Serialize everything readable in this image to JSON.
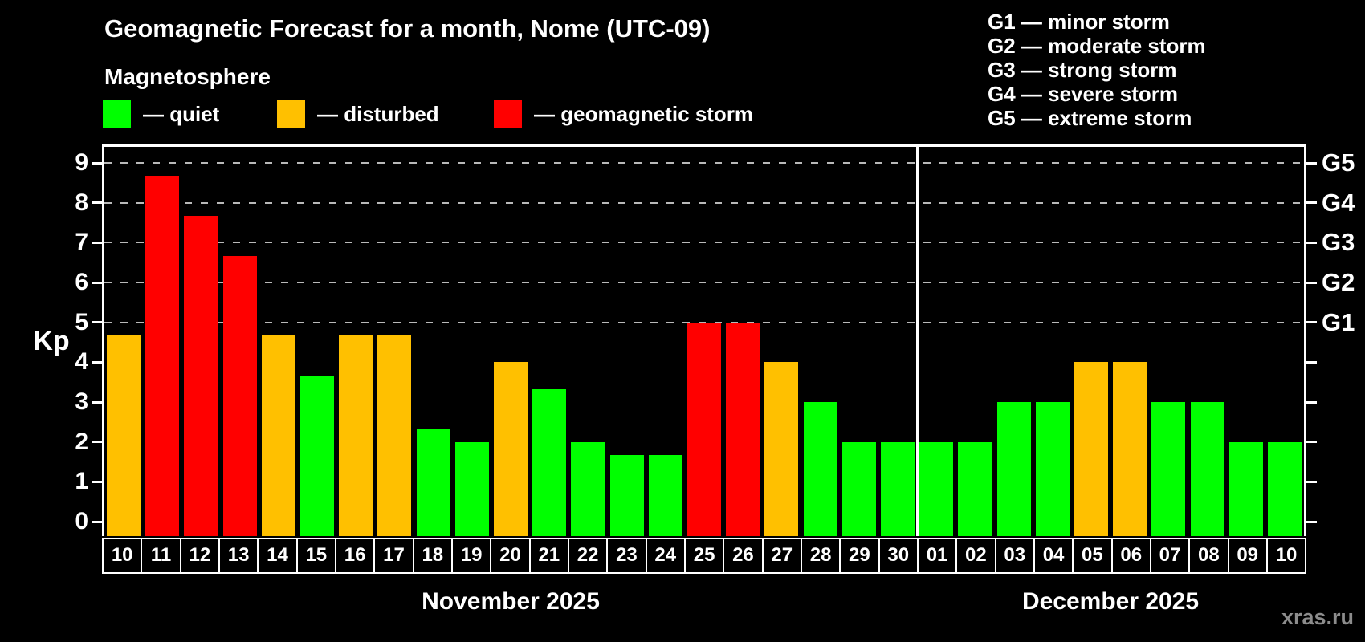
{
  "title": "Geomagnetic Forecast for a month, Nome (UTC-09)",
  "subtitle": "Magnetosphere",
  "legend": {
    "items": [
      {
        "key": "quiet",
        "label": "— quiet",
        "color": "#00ff00"
      },
      {
        "key": "disturbed",
        "label": "— disturbed",
        "color": "#ffc000"
      },
      {
        "key": "storm",
        "label": "— geomagnetic storm",
        "color": "#ff0000"
      }
    ]
  },
  "storm_scale": {
    "lines": [
      "G1 — minor storm",
      "G2 — moderate storm",
      "G3 — strong storm",
      "G4 — severe storm",
      "G5 — extreme storm"
    ]
  },
  "watermark": "xras.ru",
  "chart_data": {
    "type": "bar",
    "title": "Geomagnetic Forecast for a month, Nome (UTC-09)",
    "ylabel": "Kp",
    "ylim": [
      0,
      9
    ],
    "y_ticks": [
      0,
      1,
      2,
      3,
      4,
      5,
      6,
      7,
      8,
      9
    ],
    "gridlines_kp": [
      5,
      6,
      7,
      8,
      9
    ],
    "grid": "dashed horizontal lines at storm levels G1-G5",
    "right_axis_labels": [
      {
        "kp": 5,
        "text": "G1"
      },
      {
        "kp": 6,
        "text": "G2"
      },
      {
        "kp": 7,
        "text": "G3"
      },
      {
        "kp": 8,
        "text": "G4"
      },
      {
        "kp": 9,
        "text": "G5"
      }
    ],
    "colors": {
      "quiet": "#00ff00",
      "disturbed": "#ffc000",
      "storm": "#ff0000"
    },
    "months": [
      {
        "label": "November 2025",
        "days": 21
      },
      {
        "label": "December 2025",
        "days": 10
      }
    ],
    "bars": [
      {
        "month": "November 2025",
        "day": "10",
        "kp": 4.67,
        "status": "disturbed"
      },
      {
        "month": "November 2025",
        "day": "11",
        "kp": 8.67,
        "status": "storm"
      },
      {
        "month": "November 2025",
        "day": "12",
        "kp": 7.67,
        "status": "storm"
      },
      {
        "month": "November 2025",
        "day": "13",
        "kp": 6.67,
        "status": "storm"
      },
      {
        "month": "November 2025",
        "day": "14",
        "kp": 4.67,
        "status": "disturbed"
      },
      {
        "month": "November 2025",
        "day": "15",
        "kp": 3.67,
        "status": "quiet"
      },
      {
        "month": "November 2025",
        "day": "16",
        "kp": 4.67,
        "status": "disturbed"
      },
      {
        "month": "November 2025",
        "day": "17",
        "kp": 4.67,
        "status": "disturbed"
      },
      {
        "month": "November 2025",
        "day": "18",
        "kp": 2.33,
        "status": "quiet"
      },
      {
        "month": "November 2025",
        "day": "19",
        "kp": 2,
        "status": "quiet"
      },
      {
        "month": "November 2025",
        "day": "20",
        "kp": 4,
        "status": "disturbed"
      },
      {
        "month": "November 2025",
        "day": "21",
        "kp": 3.33,
        "status": "quiet"
      },
      {
        "month": "November 2025",
        "day": "22",
        "kp": 2,
        "status": "quiet"
      },
      {
        "month": "November 2025",
        "day": "23",
        "kp": 1.67,
        "status": "quiet"
      },
      {
        "month": "November 2025",
        "day": "24",
        "kp": 1.67,
        "status": "quiet"
      },
      {
        "month": "November 2025",
        "day": "25",
        "kp": 5,
        "status": "storm"
      },
      {
        "month": "November 2025",
        "day": "26",
        "kp": 5,
        "status": "storm"
      },
      {
        "month": "November 2025",
        "day": "27",
        "kp": 4,
        "status": "disturbed"
      },
      {
        "month": "November 2025",
        "day": "28",
        "kp": 3,
        "status": "quiet"
      },
      {
        "month": "November 2025",
        "day": "29",
        "kp": 2,
        "status": "quiet"
      },
      {
        "month": "November 2025",
        "day": "30",
        "kp": 2,
        "status": "quiet"
      },
      {
        "month": "December 2025",
        "day": "01",
        "kp": 2,
        "status": "quiet"
      },
      {
        "month": "December 2025",
        "day": "02",
        "kp": 2,
        "status": "quiet"
      },
      {
        "month": "December 2025",
        "day": "03",
        "kp": 3,
        "status": "quiet"
      },
      {
        "month": "December 2025",
        "day": "04",
        "kp": 3,
        "status": "quiet"
      },
      {
        "month": "December 2025",
        "day": "05",
        "kp": 4,
        "status": "disturbed"
      },
      {
        "month": "December 2025",
        "day": "06",
        "kp": 4,
        "status": "disturbed"
      },
      {
        "month": "December 2025",
        "day": "07",
        "kp": 3,
        "status": "quiet"
      },
      {
        "month": "December 2025",
        "day": "08",
        "kp": 3,
        "status": "quiet"
      },
      {
        "month": "December 2025",
        "day": "09",
        "kp": 2,
        "status": "quiet"
      },
      {
        "month": "December 2025",
        "day": "10",
        "kp": 2,
        "status": "quiet"
      }
    ]
  }
}
